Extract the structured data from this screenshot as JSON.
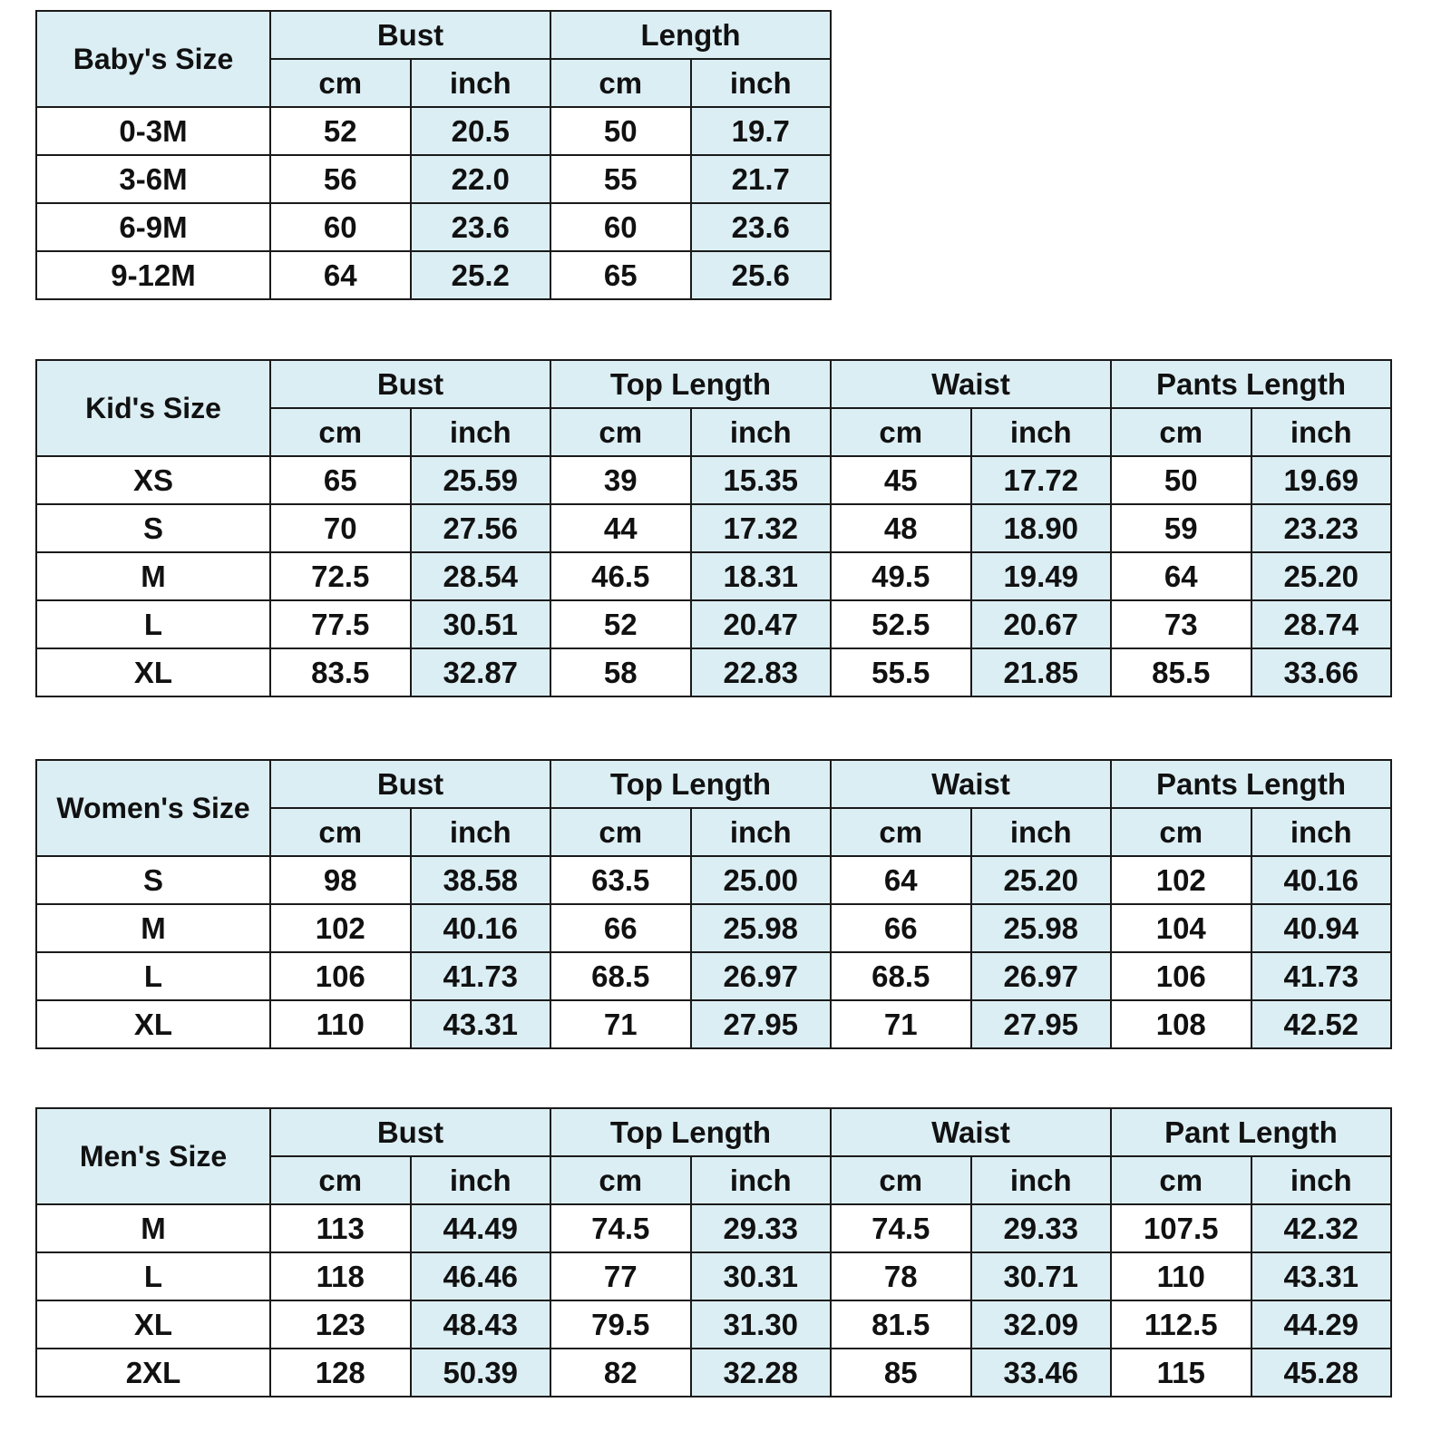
{
  "colors": {
    "header_bg": "#dbeef4",
    "shaded_column_bg": "#dbeef4",
    "border": "#1a1a1a",
    "text": "#111111"
  },
  "tables": [
    {
      "title": "Baby's Size",
      "groups": [
        "Bust",
        "Length"
      ],
      "units": [
        "cm",
        "inch"
      ],
      "rows": [
        [
          "0-3M",
          "52",
          "20.5",
          "50",
          "19.7"
        ],
        [
          "3-6M",
          "56",
          "22.0",
          "55",
          "21.7"
        ],
        [
          "6-9M",
          "60",
          "23.6",
          "60",
          "23.6"
        ],
        [
          "9-12M",
          "64",
          "25.2",
          "65",
          "25.6"
        ]
      ]
    },
    {
      "title": "Kid's Size",
      "groups": [
        "Bust",
        "Top Length",
        "Waist",
        "Pants Length"
      ],
      "units": [
        "cm",
        "inch"
      ],
      "rows": [
        [
          "XS",
          "65",
          "25.59",
          "39",
          "15.35",
          "45",
          "17.72",
          "50",
          "19.69"
        ],
        [
          "S",
          "70",
          "27.56",
          "44",
          "17.32",
          "48",
          "18.90",
          "59",
          "23.23"
        ],
        [
          "M",
          "72.5",
          "28.54",
          "46.5",
          "18.31",
          "49.5",
          "19.49",
          "64",
          "25.20"
        ],
        [
          "L",
          "77.5",
          "30.51",
          "52",
          "20.47",
          "52.5",
          "20.67",
          "73",
          "28.74"
        ],
        [
          "XL",
          "83.5",
          "32.87",
          "58",
          "22.83",
          "55.5",
          "21.85",
          "85.5",
          "33.66"
        ]
      ]
    },
    {
      "title": "Women's Size",
      "groups": [
        "Bust",
        "Top Length",
        "Waist",
        "Pants Length"
      ],
      "units": [
        "cm",
        "inch"
      ],
      "rows": [
        [
          "S",
          "98",
          "38.58",
          "63.5",
          "25.00",
          "64",
          "25.20",
          "102",
          "40.16"
        ],
        [
          "M",
          "102",
          "40.16",
          "66",
          "25.98",
          "66",
          "25.98",
          "104",
          "40.94"
        ],
        [
          "L",
          "106",
          "41.73",
          "68.5",
          "26.97",
          "68.5",
          "26.97",
          "106",
          "41.73"
        ],
        [
          "XL",
          "110",
          "43.31",
          "71",
          "27.95",
          "71",
          "27.95",
          "108",
          "42.52"
        ]
      ]
    },
    {
      "title": "Men's Size",
      "groups": [
        "Bust",
        "Top Length",
        "Waist",
        "Pant Length"
      ],
      "units": [
        "cm",
        "inch"
      ],
      "rows": [
        [
          "M",
          "113",
          "44.49",
          "74.5",
          "29.33",
          "74.5",
          "29.33",
          "107.5",
          "42.32"
        ],
        [
          "L",
          "118",
          "46.46",
          "77",
          "30.31",
          "78",
          "30.71",
          "110",
          "43.31"
        ],
        [
          "XL",
          "123",
          "48.43",
          "79.5",
          "31.30",
          "81.5",
          "32.09",
          "112.5",
          "44.29"
        ],
        [
          "2XL",
          "128",
          "50.39",
          "82",
          "32.28",
          "85",
          "33.46",
          "115",
          "45.28"
        ]
      ]
    }
  ]
}
